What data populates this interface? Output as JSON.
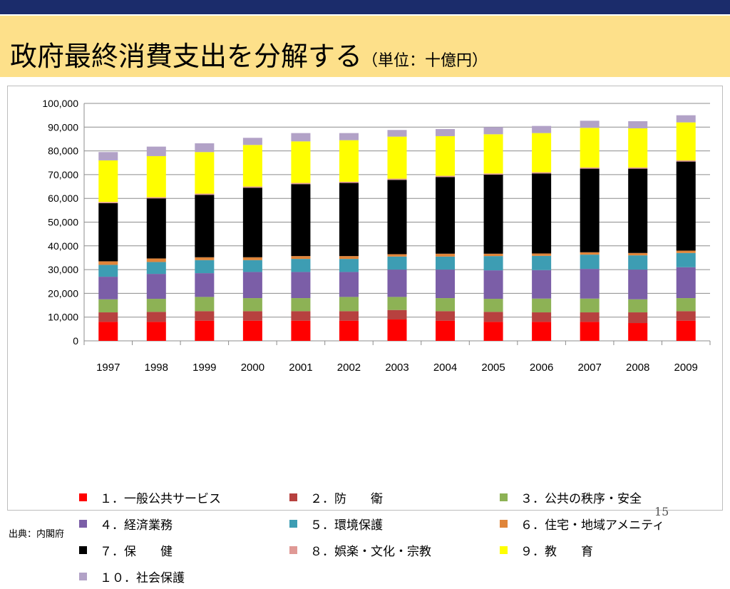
{
  "title": {
    "main": "政府最終消費支出を分解する",
    "unit": "（単位：十億円）"
  },
  "page_number": "15",
  "source": "出典：内閣府",
  "chart_data": {
    "type": "bar",
    "stacked": true,
    "categories": [
      "1997",
      "1998",
      "1999",
      "2000",
      "2001",
      "2002",
      "2003",
      "2004",
      "2005",
      "2006",
      "2007",
      "2008",
      "2009"
    ],
    "ylim": [
      0,
      100000
    ],
    "yticks": [
      0,
      10000,
      20000,
      30000,
      40000,
      50000,
      60000,
      70000,
      80000,
      90000,
      100000
    ],
    "ytick_labels": [
      "0",
      "10,000",
      "20,000",
      "30,000",
      "40,000",
      "50,000",
      "60,000",
      "70,000",
      "80,000",
      "90,000",
      "100,000"
    ],
    "grid": true,
    "legend_position": "bottom",
    "series": [
      {
        "name": "１．一般公共サービス",
        "color": "#ff0000",
        "values": [
          8000,
          8000,
          8500,
          8500,
          8500,
          8500,
          9000,
          8500,
          8000,
          8000,
          8000,
          7500,
          8500
        ]
      },
      {
        "name": "２．防　　衛",
        "color": "#b7413f",
        "values": [
          4000,
          4200,
          4000,
          4000,
          4000,
          4000,
          4000,
          4000,
          4200,
          4000,
          4000,
          4500,
          4000
        ]
      },
      {
        "name": "３．公共の秩序・安全",
        "color": "#8db255",
        "values": [
          5500,
          5500,
          6000,
          5500,
          5500,
          6000,
          5500,
          5500,
          5500,
          5800,
          5800,
          5500,
          5500
        ]
      },
      {
        "name": "４．経済業務",
        "color": "#7b5ea7",
        "values": [
          9500,
          10500,
          10000,
          11000,
          11000,
          10500,
          11500,
          12000,
          12000,
          12000,
          12500,
          12500,
          13000
        ]
      },
      {
        "name": "５．環境保護",
        "color": "#3d9db3",
        "values": [
          5000,
          5000,
          5500,
          5000,
          5500,
          5500,
          5500,
          5500,
          6000,
          6000,
          6000,
          6000,
          6000
        ]
      },
      {
        "name": "６．住宅・地域アメニティ",
        "color": "#e0853a",
        "values": [
          1500,
          1500,
          1200,
          1200,
          1200,
          1200,
          1000,
          1200,
          1000,
          1000,
          1000,
          1000,
          1000
        ]
      },
      {
        "name": "７．保　　健",
        "color": "#000000",
        "values": [
          24500,
          25300,
          26300,
          29300,
          30300,
          30800,
          31300,
          32300,
          33300,
          33700,
          35200,
          35500,
          37500
        ]
      },
      {
        "name": "８．娯楽・文化・宗教",
        "color": "#e09995",
        "values": [
          500,
          500,
          500,
          500,
          500,
          500,
          500,
          500,
          500,
          500,
          500,
          500,
          500
        ]
      },
      {
        "name": "９．教　　育",
        "color": "#ffff00",
        "values": [
          17500,
          17300,
          17500,
          17500,
          17500,
          17500,
          17700,
          16700,
          16500,
          16500,
          16700,
          16500,
          16000
        ]
      },
      {
        "name": "１０．社会保護",
        "color": "#b2a2c7",
        "values": [
          3500,
          4000,
          3700,
          3000,
          3500,
          3000,
          2800,
          3000,
          3000,
          3000,
          3000,
          3000,
          3000
        ]
      }
    ]
  }
}
